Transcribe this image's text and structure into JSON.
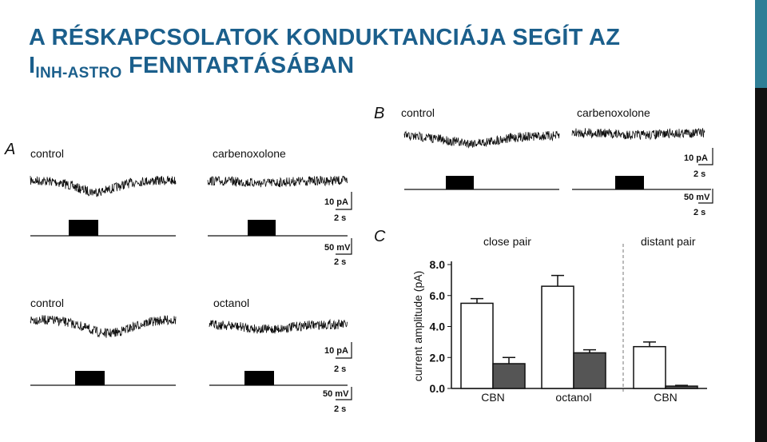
{
  "title": {
    "line1": "A RÉSKAPCSOLATOK KONDUKTANCIÁJA SEGÍT AZ",
    "main": "I",
    "subscript": "INH-ASTRO",
    "rest": "FENNTARTÁSÁBAN"
  },
  "panel_a": {
    "label": "A",
    "top": {
      "left": "control",
      "right": "carbenoxolone",
      "scale1_y": "10 pA",
      "scale1_x": "2 s",
      "scale2_y": "50 mV",
      "scale2_x": "2 s"
    },
    "bottom": {
      "left": "control",
      "right": "octanol",
      "scale1_y": "10 pA",
      "scale1_x": "2 s",
      "scale2_y": "50 mV",
      "scale2_x": "2 s"
    }
  },
  "panel_b": {
    "label": "B",
    "left": "control",
    "right": "carbenoxolone",
    "scale1_y": "10 pA",
    "scale1_x": "2 s",
    "scale2_y": "50 mV",
    "scale2_x": "2 s"
  },
  "panel_c": {
    "label": "C"
  },
  "chart_data": {
    "type": "bar",
    "y_label": "current amplitude (pA)",
    "group_labels": [
      "close pair",
      "distant pair"
    ],
    "categories": [
      "CBN",
      "octanol",
      "CBN"
    ],
    "series": [
      {
        "color": "#ffffff",
        "values": [
          5.5,
          6.6,
          2.7
        ],
        "errors": [
          0.3,
          0.7,
          0.3
        ]
      },
      {
        "color": "#555555",
        "values": [
          1.6,
          2.3,
          0.15
        ],
        "errors": [
          0.4,
          0.2,
          0.05
        ]
      }
    ],
    "ylim": [
      0,
      8
    ],
    "yticks": [
      {
        "value": 0,
        "label": "0.0"
      },
      {
        "value": 2,
        "label": "2.0"
      },
      {
        "value": 4,
        "label": "4.0"
      },
      {
        "value": 6,
        "label": "6.0"
      },
      {
        "value": 8,
        "label": "8.0"
      }
    ]
  }
}
